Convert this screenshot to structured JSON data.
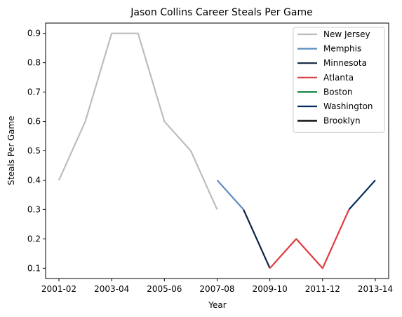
{
  "chart_data": {
    "type": "line",
    "title": "Jason Collins Career Steals Per Game",
    "xlabel": "Year",
    "ylabel": "Steals Per Game",
    "ylim": [
      0.065,
      0.935
    ],
    "yticks": [
      "0.1",
      "0.2",
      "0.3",
      "0.4",
      "0.5",
      "0.6",
      "0.7",
      "0.8",
      "0.9"
    ],
    "seasons": [
      "2001-02",
      "2002-03",
      "2003-04",
      "2004-05",
      "2005-06",
      "2006-07",
      "2007-08",
      "2008-09",
      "2009-10",
      "2010-11",
      "2011-12",
      "2012-13",
      "2013-14"
    ],
    "xticks": [
      "2001-02",
      "2003-04",
      "2005-06",
      "2007-08",
      "2009-10",
      "2011-12",
      "2013-14"
    ],
    "legend_position": "top-right",
    "grid": false,
    "series": [
      {
        "name": "New Jersey",
        "color": "#bdbdbd",
        "points": [
          [
            "2001-02",
            0.4
          ],
          [
            "2002-03",
            0.6
          ],
          [
            "2003-04",
            0.9
          ],
          [
            "2004-05",
            0.9
          ],
          [
            "2005-06",
            0.6
          ],
          [
            "2006-07",
            0.5
          ],
          [
            "2007-08",
            0.3
          ]
        ]
      },
      {
        "name": "Memphis",
        "color": "#5d8bc1",
        "points": [
          [
            "2007-08",
            0.4
          ],
          [
            "2008-09",
            0.3
          ]
        ]
      },
      {
        "name": "Minnesota",
        "color": "#0c2340",
        "points": [
          [
            "2008-09",
            0.3
          ],
          [
            "2009-10",
            0.1
          ]
        ]
      },
      {
        "name": "Atlanta",
        "color": "#e03a3e",
        "points": [
          [
            "2009-10",
            0.1
          ],
          [
            "2010-11",
            0.2
          ],
          [
            "2011-12",
            0.1
          ],
          [
            "2012-13",
            0.3
          ]
        ]
      },
      {
        "name": "Boston",
        "color": "#007a33",
        "points": []
      },
      {
        "name": "Washington",
        "color": "#002b5c",
        "points": [
          [
            "2012-13",
            0.3
          ],
          [
            "2013-14",
            0.4
          ]
        ]
      },
      {
        "name": "Brooklyn",
        "color": "#000000",
        "points": []
      }
    ]
  }
}
